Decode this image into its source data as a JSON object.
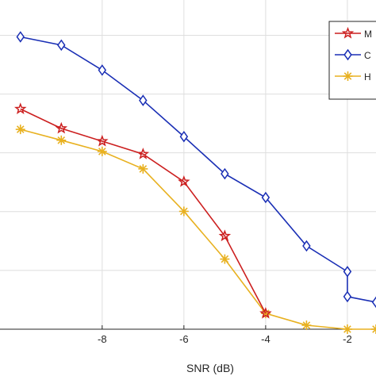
{
  "chart_data": {
    "type": "line",
    "xlabel": "SNR (dB)",
    "ylabel": "",
    "title": "",
    "xlim": [
      -10.5,
      -1.3
    ],
    "ylim": [
      0,
      1
    ],
    "x_ticks": [
      -8,
      -6,
      -4,
      -2
    ],
    "x_tick_labels": [
      "-8",
      "-6",
      "-4",
      "-2"
    ],
    "y_gridlines": [
      0,
      0.1786,
      0.3571,
      0.5357,
      0.7143,
      0.8929
    ],
    "grid": true,
    "legend_position": "top-right",
    "series": [
      {
        "name": "M",
        "color": "#cc1f1f",
        "marker": "star",
        "x": [
          -10,
          -9,
          -8,
          -7,
          -6,
          -5,
          -4
        ],
        "y": [
          0.669,
          0.61,
          0.571,
          0.532,
          0.448,
          0.283,
          0.048
        ]
      },
      {
        "name": "C",
        "color": "#1a2fb5",
        "marker": "diamond",
        "x": [
          -10,
          -9,
          -8,
          -7,
          -6,
          -5,
          -4,
          -3,
          -2,
          -2,
          -1.3
        ],
        "y": [
          0.888,
          0.863,
          0.787,
          0.695,
          0.585,
          0.472,
          0.4,
          0.253,
          0.175,
          0.099,
          0.082
        ]
      },
      {
        "name": "H",
        "color": "#e8b120",
        "marker": "asterisk",
        "x": [
          -10,
          -9,
          -8,
          -7,
          -6,
          -5,
          -4,
          -3,
          -2,
          -1.3
        ],
        "y": [
          0.607,
          0.574,
          0.54,
          0.487,
          0.358,
          0.213,
          0.048,
          0.012,
          0.0,
          0.0
        ]
      }
    ]
  }
}
